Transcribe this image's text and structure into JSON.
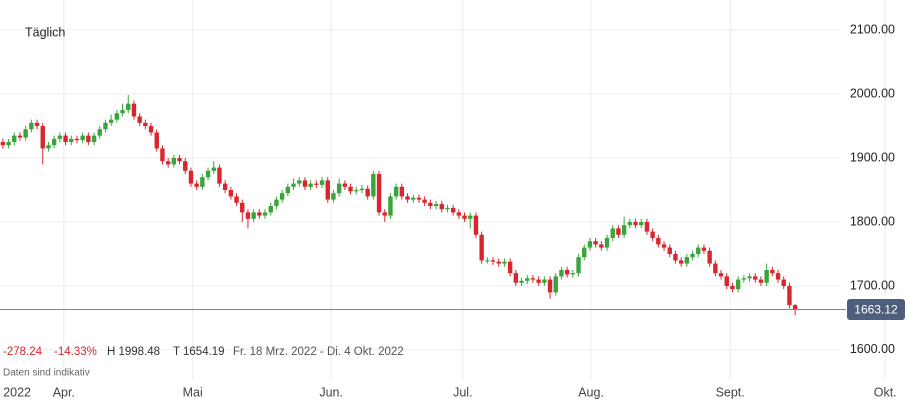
{
  "chart_data": {
    "type": "candlestick",
    "title": "Täglich",
    "up_color": "#3aa43c",
    "down_color": "#d9262e",
    "open": [
      1925,
      1920,
      1925,
      1935,
      1932,
      1945,
      1955,
      1950,
      1915,
      1920,
      1930,
      1935,
      1925,
      1930,
      1928,
      1935,
      1925,
      1935,
      1945,
      1955,
      1960,
      1970,
      1975,
      1985,
      1965,
      1955,
      1950,
      1940,
      1915,
      1895,
      1890,
      1900,
      1895,
      1880,
      1860,
      1855,
      1870,
      1880,
      1885,
      1860,
      1850,
      1840,
      1830,
      1815,
      1805,
      1815,
      1810,
      1815,
      1825,
      1835,
      1845,
      1855,
      1860,
      1865,
      1855,
      1860,
      1858,
      1865,
      1835,
      1845,
      1860,
      1855,
      1848,
      1850,
      1852,
      1840,
      1875,
      1815,
      1810,
      1840,
      1855,
      1840,
      1835,
      1838,
      1835,
      1830,
      1825,
      1828,
      1820,
      1822,
      1815,
      1810,
      1805,
      1810,
      1780,
      1740,
      1740,
      1738,
      1735,
      1738,
      1720,
      1705,
      1708,
      1712,
      1710,
      1705,
      1710,
      1690,
      1715,
      1725,
      1718,
      1720,
      1745,
      1760,
      1770,
      1765,
      1760,
      1775,
      1790,
      1780,
      1795,
      1800,
      1795,
      1800,
      1785,
      1775,
      1765,
      1760,
      1750,
      1740,
      1735,
      1745,
      1750,
      1760,
      1755,
      1735,
      1720,
      1715,
      1700,
      1695,
      1710,
      1712,
      1715,
      1710,
      1705,
      1725,
      1720,
      1710,
      1700,
      1670
    ],
    "high": [
      1930,
      1930,
      1940,
      1940,
      1950,
      1960,
      1960,
      1955,
      1925,
      1935,
      1940,
      1940,
      1935,
      1935,
      1940,
      1940,
      1940,
      1950,
      1960,
      1968,
      1975,
      1985,
      1998.48,
      1990,
      1970,
      1960,
      1955,
      1945,
      1920,
      1900,
      1905,
      1905,
      1900,
      1885,
      1865,
      1875,
      1885,
      1895,
      1890,
      1865,
      1855,
      1845,
      1835,
      1820,
      1820,
      1820,
      1820,
      1830,
      1840,
      1850,
      1860,
      1868,
      1870,
      1870,
      1865,
      1865,
      1870,
      1870,
      1850,
      1868,
      1865,
      1860,
      1855,
      1858,
      1857,
      1880,
      1880,
      1820,
      1845,
      1860,
      1860,
      1845,
      1843,
      1843,
      1840,
      1835,
      1833,
      1833,
      1827,
      1827,
      1820,
      1815,
      1815,
      1815,
      1785,
      1745,
      1745,
      1743,
      1743,
      1743,
      1725,
      1713,
      1717,
      1717,
      1715,
      1715,
      1715,
      1720,
      1730,
      1730,
      1725,
      1750,
      1765,
      1775,
      1775,
      1770,
      1780,
      1795,
      1795,
      1808,
      1805,
      1805,
      1805,
      1805,
      1790,
      1780,
      1770,
      1765,
      1755,
      1745,
      1750,
      1755,
      1765,
      1765,
      1760,
      1740,
      1725,
      1720,
      1705,
      1715,
      1717,
      1720,
      1720,
      1715,
      1735,
      1730,
      1725,
      1715,
      1705,
      1672
    ],
    "low": [
      1915,
      1915,
      1920,
      1927,
      1927,
      1940,
      1945,
      1890,
      1910,
      1915,
      1925,
      1920,
      1920,
      1923,
      1923,
      1920,
      1920,
      1930,
      1940,
      1950,
      1955,
      1965,
      1970,
      1960,
      1950,
      1945,
      1935,
      1910,
      1890,
      1885,
      1885,
      1890,
      1875,
      1855,
      1850,
      1850,
      1865,
      1875,
      1855,
      1845,
      1835,
      1825,
      1800,
      1790,
      1800,
      1805,
      1805,
      1810,
      1820,
      1830,
      1840,
      1850,
      1855,
      1850,
      1850,
      1853,
      1853,
      1830,
      1830,
      1840,
      1850,
      1843,
      1843,
      1845,
      1835,
      1835,
      1810,
      1800,
      1805,
      1835,
      1835,
      1830,
      1830,
      1830,
      1825,
      1820,
      1820,
      1815,
      1815,
      1810,
      1805,
      1800,
      1790,
      1775,
      1735,
      1735,
      1733,
      1730,
      1730,
      1715,
      1700,
      1700,
      1703,
      1705,
      1700,
      1700,
      1680,
      1685,
      1710,
      1713,
      1713,
      1715,
      1740,
      1755,
      1760,
      1755,
      1755,
      1770,
      1775,
      1775,
      1790,
      1790,
      1790,
      1780,
      1770,
      1760,
      1755,
      1745,
      1735,
      1730,
      1730,
      1740,
      1745,
      1750,
      1730,
      1715,
      1710,
      1695,
      1690,
      1690,
      1705,
      1707,
      1705,
      1700,
      1700,
      1715,
      1705,
      1695,
      1665,
      1654.19
    ],
    "close": [
      1920,
      1925,
      1935,
      1932,
      1945,
      1955,
      1950,
      1915,
      1920,
      1930,
      1935,
      1925,
      1930,
      1928,
      1935,
      1925,
      1935,
      1945,
      1955,
      1960,
      1970,
      1975,
      1985,
      1965,
      1955,
      1950,
      1940,
      1915,
      1895,
      1890,
      1900,
      1895,
      1880,
      1860,
      1855,
      1870,
      1880,
      1885,
      1860,
      1850,
      1840,
      1830,
      1815,
      1805,
      1815,
      1810,
      1815,
      1825,
      1835,
      1845,
      1855,
      1860,
      1865,
      1855,
      1860,
      1858,
      1865,
      1835,
      1845,
      1860,
      1855,
      1848,
      1850,
      1852,
      1840,
      1875,
      1815,
      1810,
      1840,
      1855,
      1840,
      1835,
      1838,
      1835,
      1830,
      1825,
      1828,
      1820,
      1822,
      1815,
      1810,
      1805,
      1810,
      1780,
      1740,
      1740,
      1738,
      1735,
      1738,
      1720,
      1705,
      1708,
      1712,
      1710,
      1705,
      1710,
      1690,
      1715,
      1725,
      1718,
      1720,
      1745,
      1760,
      1770,
      1765,
      1760,
      1775,
      1790,
      1780,
      1795,
      1800,
      1795,
      1800,
      1785,
      1775,
      1765,
      1760,
      1750,
      1740,
      1735,
      1745,
      1750,
      1760,
      1755,
      1735,
      1720,
      1715,
      1700,
      1695,
      1710,
      1712,
      1715,
      1710,
      1705,
      1725,
      1720,
      1710,
      1700,
      1670,
      1663.12
    ],
    "last_price": 1663.12,
    "ylim": [
      1553,
      2147
    ],
    "yticks": [
      {
        "value": 1600,
        "label": "1600.00"
      },
      {
        "value": 1700,
        "label": "1700.00"
      },
      {
        "value": 1800,
        "label": "1800.00"
      },
      {
        "value": 1900,
        "label": "1900.00"
      },
      {
        "value": 2000,
        "label": "2000.00"
      },
      {
        "value": 2100,
        "label": "2100.00"
      }
    ],
    "xlim": [
      -0.5,
      158.8
    ],
    "xticks": [
      {
        "value": 2.5,
        "label": "2022"
      },
      {
        "value": 10.7,
        "label": "Apr."
      },
      {
        "value": 33.3,
        "label": "Mai"
      },
      {
        "value": 57.6,
        "label": "Jun."
      },
      {
        "value": 80.7,
        "label": "Jul."
      },
      {
        "value": 103.2,
        "label": "Aug."
      },
      {
        "value": 127.6,
        "label": "Sept."
      },
      {
        "value": 154.8,
        "label": "Okt."
      }
    ],
    "grid": true
  },
  "summary": {
    "change": "-278.24",
    "change_pct": "-14.33%",
    "high": "H 1998.48",
    "low": "T 1654.19",
    "range": "Fr. 18 Mrz. 2022 - Di. 4 Okt. 2022",
    "note": "Daten sind indikativ"
  }
}
